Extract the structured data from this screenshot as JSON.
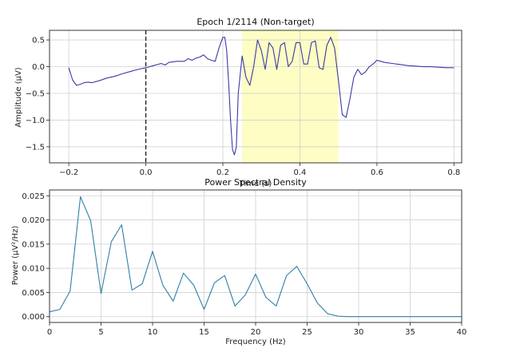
{
  "chart_data": [
    {
      "type": "line",
      "title": "Epoch 1/2114 (Non-target)",
      "xlabel": "Time (s)",
      "ylabel": "Amplitude (µV)",
      "xlim": [
        -0.25,
        0.82
      ],
      "ylim": [
        -1.8,
        0.68
      ],
      "xticks": [
        -0.2,
        0.0,
        0.2,
        0.4,
        0.6,
        0.8
      ],
      "xtick_labels": [
        "−0.2",
        "0.0",
        "0.2",
        "0.4",
        "0.6",
        "0.8"
      ],
      "yticks": [
        -1.5,
        -1.0,
        -0.5,
        0.0,
        0.5
      ],
      "ytick_labels": [
        "−1.5",
        "−1.0",
        "−0.5",
        "0.0",
        "0.5"
      ],
      "grid": true,
      "line_color": "#3a3aa8",
      "marker_line": {
        "x": 0.0,
        "style": "dashed",
        "color": "#222222"
      },
      "highlight_region": {
        "x0": 0.25,
        "x1": 0.5,
        "color": "#fdfdc4"
      },
      "series": [
        {
          "x": [
            -0.2,
            -0.19,
            -0.18,
            -0.17,
            -0.16,
            -0.15,
            -0.14,
            -0.12,
            -0.1,
            -0.08,
            -0.06,
            -0.04,
            -0.02,
            0.0,
            0.02,
            0.04,
            0.05,
            0.06,
            0.08,
            0.1,
            0.11,
            0.12,
            0.13,
            0.14,
            0.15,
            0.16,
            0.17,
            0.18,
            0.19,
            0.2,
            0.205,
            0.21,
            0.215,
            0.22,
            0.225,
            0.23,
            0.235,
            0.24,
            0.25,
            0.26,
            0.27,
            0.28,
            0.29,
            0.3,
            0.31,
            0.32,
            0.33,
            0.34,
            0.35,
            0.36,
            0.37,
            0.38,
            0.39,
            0.4,
            0.41,
            0.42,
            0.43,
            0.44,
            0.45,
            0.46,
            0.47,
            0.48,
            0.49,
            0.5,
            0.51,
            0.52,
            0.53,
            0.54,
            0.55,
            0.56,
            0.57,
            0.58,
            0.59,
            0.6,
            0.61,
            0.62,
            0.64,
            0.66,
            0.68,
            0.7,
            0.72,
            0.74,
            0.76,
            0.78,
            0.8
          ],
          "values": [
            -0.02,
            -0.25,
            -0.35,
            -0.33,
            -0.3,
            -0.29,
            -0.3,
            -0.26,
            -0.21,
            -0.18,
            -0.13,
            -0.09,
            -0.05,
            -0.02,
            0.02,
            0.06,
            0.03,
            0.08,
            0.1,
            0.1,
            0.15,
            0.12,
            0.16,
            0.18,
            0.22,
            0.15,
            0.12,
            0.1,
            0.35,
            0.55,
            0.55,
            0.3,
            -0.3,
            -1.0,
            -1.55,
            -1.65,
            -1.5,
            -0.5,
            0.2,
            -0.2,
            -0.35,
            0.0,
            0.5,
            0.3,
            -0.05,
            0.45,
            0.35,
            -0.05,
            0.4,
            0.45,
            0.0,
            0.1,
            0.45,
            0.45,
            0.05,
            0.05,
            0.45,
            0.48,
            -0.02,
            -0.05,
            0.4,
            0.55,
            0.35,
            -0.25,
            -0.9,
            -0.95,
            -0.6,
            -0.2,
            -0.05,
            -0.15,
            -0.1,
            0.0,
            0.05,
            0.12,
            0.1,
            0.08,
            0.06,
            0.04,
            0.02,
            0.01,
            0.0,
            0.0,
            -0.01,
            -0.02,
            -0.02
          ]
        }
      ]
    },
    {
      "type": "line",
      "title": "Power Spectral Density",
      "xlabel": "Frequency (Hz)",
      "ylabel": "Power (µV²/Hz)",
      "xlim": [
        0,
        40
      ],
      "ylim": [
        -0.0012,
        0.0262
      ],
      "xticks": [
        0,
        5,
        10,
        15,
        20,
        25,
        30,
        35,
        40
      ],
      "xtick_labels": [
        "0",
        "5",
        "10",
        "15",
        "20",
        "25",
        "30",
        "35",
        "40"
      ],
      "yticks": [
        0.0,
        0.005,
        0.01,
        0.015,
        0.02,
        0.025
      ],
      "ytick_labels": [
        "0.000",
        "0.005",
        "0.010",
        "0.015",
        "0.020",
        "0.025"
      ],
      "grid": true,
      "line_color": "#2f7fa8",
      "series": [
        {
          "x": [
            0,
            1,
            2,
            3,
            4,
            5,
            6,
            7,
            8,
            9,
            10,
            11,
            12,
            13,
            14,
            15,
            16,
            17,
            18,
            19,
            20,
            21,
            22,
            23,
            24,
            25,
            26,
            27,
            28,
            29,
            30,
            31,
            32,
            33,
            34,
            35,
            36,
            37,
            38,
            39,
            40
          ],
          "values": [
            0.001,
            0.0015,
            0.0053,
            0.0248,
            0.0198,
            0.0048,
            0.0155,
            0.019,
            0.0055,
            0.0068,
            0.0135,
            0.0065,
            0.0032,
            0.009,
            0.0065,
            0.0015,
            0.007,
            0.0085,
            0.0022,
            0.0045,
            0.0088,
            0.004,
            0.0022,
            0.0085,
            0.0104,
            0.0068,
            0.0028,
            0.0006,
            0.0001,
            0.0,
            0.0,
            0.0,
            0.0,
            0.0,
            0.0,
            0.0,
            0.0,
            0.0,
            0.0,
            0.0,
            0.0
          ]
        }
      ]
    }
  ]
}
